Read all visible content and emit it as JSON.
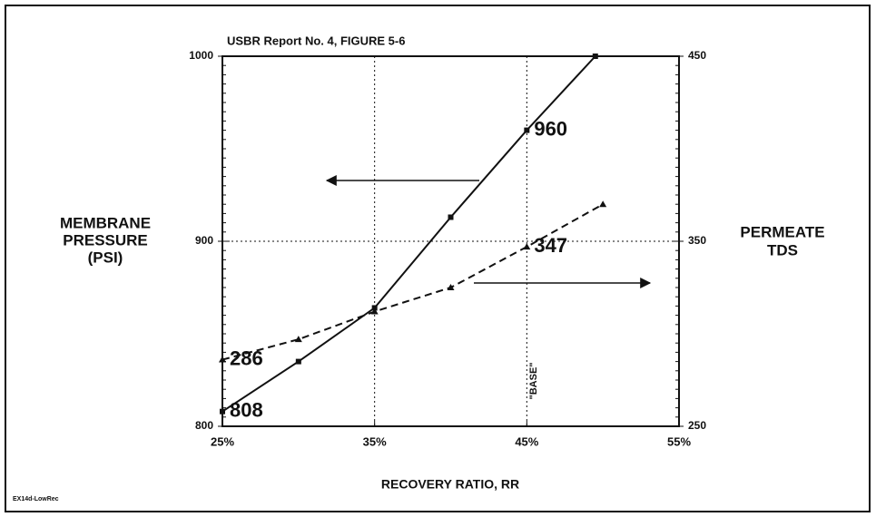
{
  "chart_data": {
    "type": "line",
    "title": "USBR Report No. 4, FIGURE 5-6",
    "x_label": "RECOVERY RATIO, RR",
    "y_label": [
      "MEMBRANE",
      "PRESSURE",
      "(PSI)"
    ],
    "y2_label": [
      "PERMEATE",
      "TDS"
    ],
    "annotation": "\"BASE\"",
    "footer": "EX14d-LowRec",
    "xlim": [
      25,
      55
    ],
    "xticks": [
      {
        "value": 25,
        "label": "25%"
      },
      {
        "value": 35,
        "label": "35%"
      },
      {
        "value": 45,
        "label": "45%"
      },
      {
        "value": 55,
        "label": "55%"
      }
    ],
    "ylim": [
      800,
      1000
    ],
    "yticks": [
      800,
      900,
      1000
    ],
    "y2lim": [
      250,
      450
    ],
    "y2ticks": [
      250,
      350,
      450
    ],
    "grid": true,
    "series": [
      {
        "name": "MEMBRANE PRESSURE",
        "color": "#111",
        "dash": false,
        "marker": "square",
        "x": [
          25,
          30,
          35,
          40,
          45,
          49.5
        ],
        "values": [
          808,
          835,
          864,
          913,
          960,
          1000
        ],
        "value_labels": [
          "808",
          null,
          null,
          null,
          "960",
          null
        ]
      },
      {
        "name": "PERMEATE TDS",
        "color": "#111",
        "dash": true,
        "marker": "triangle",
        "axis": "y2",
        "x": [
          25,
          30,
          35,
          40,
          45,
          50
        ],
        "values": [
          286,
          297,
          312,
          325,
          347,
          370
        ],
        "value_labels": [
          "286",
          null,
          null,
          null,
          "347",
          null
        ]
      }
    ]
  }
}
